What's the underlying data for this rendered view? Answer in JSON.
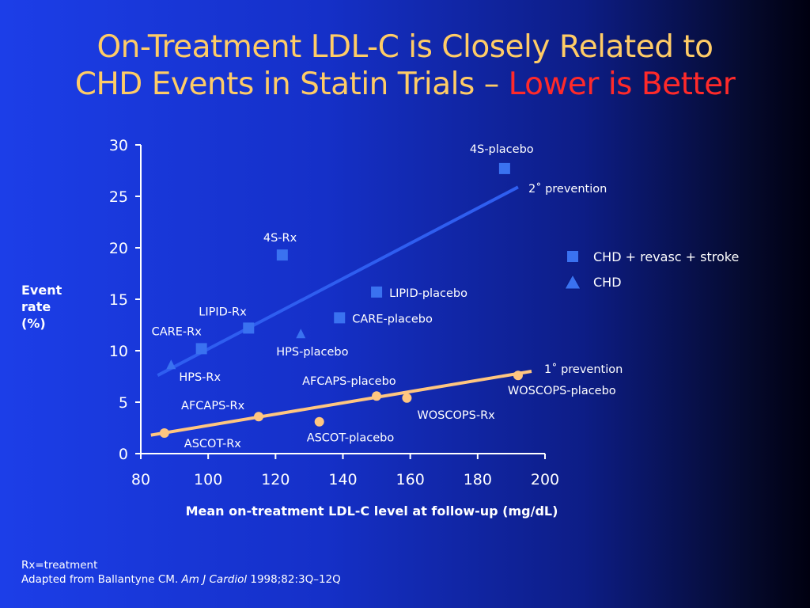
{
  "slide": {
    "title_line1": "On-Treatment LDL-C is Closely Related to",
    "title_line2_part1": "CHD Events in Statin Trials – ",
    "title_line2_highlight": "Lower is Better"
  },
  "footer": {
    "line1": "Rx=treatment",
    "line2_prefix": "Adapted from Ballantyne CM. ",
    "line2_journal": "Am J Cardiol",
    "line2_suffix": " 1998;82:3Q–12Q"
  },
  "colors": {
    "title": "#ffcc66",
    "highlight": "#ff2a2a",
    "secondary_line": "#2f5ef0",
    "primary_line": "#ffc680",
    "square_marker": "#3a72f0",
    "circle_marker": "#ffc680",
    "triangle_marker": "#3a72f0"
  },
  "chart_data": {
    "type": "scatter",
    "xlabel": "Mean on-treatment LDL-C level at follow-up (mg/dL)",
    "ylabel": "Event\nrate\n(%)",
    "xlim": [
      80,
      200
    ],
    "ylim": [
      0,
      30
    ],
    "xticks": [
      80,
      100,
      120,
      140,
      160,
      180,
      200
    ],
    "yticks": [
      0,
      5,
      10,
      15,
      20,
      25,
      30
    ],
    "legend": [
      {
        "label": "CHD + revasc + stroke",
        "marker": "square"
      },
      {
        "label": "CHD",
        "marker": "triangle"
      }
    ],
    "trendlines": [
      {
        "label": "2˚ prevention",
        "from": [
          85,
          7.6
        ],
        "to": [
          192,
          25.9
        ]
      },
      {
        "label": "1˚ prevention",
        "from": [
          83,
          1.8
        ],
        "to": [
          196,
          8.0
        ]
      }
    ],
    "points": [
      {
        "label": "4S-placebo",
        "x": 188,
        "y": 27.7,
        "marker": "square"
      },
      {
        "label": "4S-Rx",
        "x": 122,
        "y": 19.3,
        "marker": "square"
      },
      {
        "label": "LIPID-placebo",
        "x": 150,
        "y": 15.7,
        "marker": "square"
      },
      {
        "label": "CARE-placebo",
        "x": 139,
        "y": 13.2,
        "marker": "square"
      },
      {
        "label": "LIPID-Rx",
        "x": 112,
        "y": 12.2,
        "marker": "square"
      },
      {
        "label": "CARE-Rx",
        "x": 98,
        "y": 10.2,
        "marker": "square"
      },
      {
        "label": "HPS-placebo",
        "x": 127.5,
        "y": 11.6,
        "marker": "triangle"
      },
      {
        "label": "HPS-Rx",
        "x": 89,
        "y": 8.6,
        "marker": "triangle"
      },
      {
        "label": "AFCAPS-placebo",
        "x": 150,
        "y": 5.6,
        "marker": "circle"
      },
      {
        "label": "WOSCOPS-placebo",
        "x": 192,
        "y": 7.6,
        "marker": "circle"
      },
      {
        "label": "WOSCOPS-Rx",
        "x": 159,
        "y": 5.4,
        "marker": "circle"
      },
      {
        "label": "AFCAPS-Rx",
        "x": 115,
        "y": 3.6,
        "marker": "circle"
      },
      {
        "label": "ASCOT-placebo",
        "x": 133,
        "y": 3.1,
        "marker": "circle"
      },
      {
        "label": "ASCOT-Rx",
        "x": 87,
        "y": 2.0,
        "marker": "circle"
      }
    ]
  }
}
